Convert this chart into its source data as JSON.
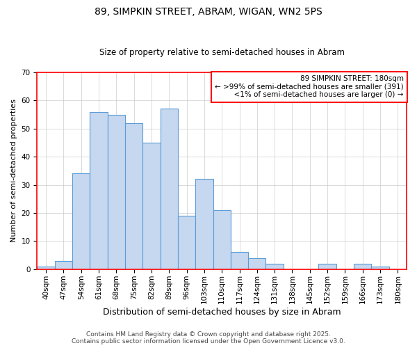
{
  "title": "89, SIMPKIN STREET, ABRAM, WIGAN, WN2 5PS",
  "subtitle": "Size of property relative to semi-detached houses in Abram",
  "xlabel": "Distribution of semi-detached houses by size in Abram",
  "ylabel": "Number of semi-detached properties",
  "bar_labels": [
    "40sqm",
    "47sqm",
    "54sqm",
    "61sqm",
    "68sqm",
    "75sqm",
    "82sqm",
    "89sqm",
    "96sqm",
    "103sqm",
    "110sqm",
    "117sqm",
    "124sqm",
    "131sqm",
    "138sqm",
    "145sqm",
    "152sqm",
    "159sqm",
    "166sqm",
    "173sqm",
    "180sqm"
  ],
  "bar_values": [
    1,
    3,
    34,
    56,
    55,
    52,
    45,
    57,
    19,
    32,
    21,
    6,
    4,
    2,
    0,
    0,
    2,
    0,
    2,
    1,
    0
  ],
  "bar_color": "#c5d8f0",
  "bar_edge_color": "#5b9bd5",
  "annotation_title": "89 SIMPKIN STREET: 180sqm",
  "annotation_line1": "← >99% of semi-detached houses are smaller (391)",
  "annotation_line2": "  <1% of semi-detached houses are larger (0) →",
  "annotation_box_color": "#ffffff",
  "annotation_box_edge_color": "#ff0000",
  "ylim": [
    0,
    70
  ],
  "yticks": [
    0,
    10,
    20,
    30,
    40,
    50,
    60,
    70
  ],
  "footer_line1": "Contains HM Land Registry data © Crown copyright and database right 2025.",
  "footer_line2": "Contains public sector information licensed under the Open Government Licence v3.0.",
  "bg_color": "#ffffff",
  "grid_color": "#cccccc",
  "title_fontsize": 10,
  "subtitle_fontsize": 8.5,
  "xlabel_fontsize": 9,
  "ylabel_fontsize": 8,
  "tick_fontsize": 7.5,
  "annotation_fontsize": 7.5,
  "footer_fontsize": 6.5
}
